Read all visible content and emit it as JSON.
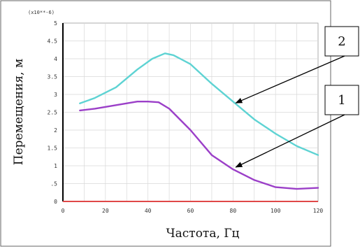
{
  "chart_data": {
    "type": "line",
    "xlabel": "Частота, Гц",
    "ylabel": "Перемещения, м",
    "y_multiplier_label": "(x10**-6)",
    "xlim": [
      0,
      120
    ],
    "ylim": [
      0,
      5
    ],
    "x_ticks": [
      "0",
      "20",
      "40",
      "60",
      "80",
      "100",
      "120"
    ],
    "y_ticks": [
      {
        "value": 0,
        "label": "0"
      },
      {
        "value": 0.5,
        "label": ".5"
      },
      {
        "value": 1,
        "label": "1"
      },
      {
        "value": 1.5,
        "label": "1.5"
      },
      {
        "value": 2,
        "label": "2"
      },
      {
        "value": 2.5,
        "label": "2.5"
      },
      {
        "value": 3,
        "label": "3"
      },
      {
        "value": 3.5,
        "label": "3.5"
      },
      {
        "value": 4,
        "label": "4"
      },
      {
        "value": 4.5,
        "label": "4.5"
      },
      {
        "value": 5,
        "label": "5"
      }
    ],
    "grid": true,
    "series": [
      {
        "name": "2",
        "color": "#5ed3d3",
        "x": [
          8,
          15,
          25,
          35,
          42,
          48,
          52,
          60,
          70,
          80,
          90,
          100,
          110,
          120
        ],
        "values": [
          2.75,
          2.9,
          3.2,
          3.7,
          4.0,
          4.15,
          4.1,
          3.85,
          3.3,
          2.8,
          2.3,
          1.9,
          1.55,
          1.3
        ]
      },
      {
        "name": "1",
        "color": "#9b3fc8",
        "x": [
          8,
          15,
          25,
          35,
          40,
          45,
          50,
          60,
          70,
          80,
          90,
          100,
          110,
          120
        ],
        "values": [
          2.55,
          2.6,
          2.7,
          2.8,
          2.8,
          2.78,
          2.6,
          2.0,
          1.3,
          0.9,
          0.6,
          0.4,
          0.35,
          0.38
        ]
      }
    ],
    "baseline_color": "#e04848",
    "callouts": [
      {
        "label": "2",
        "x": 80,
        "y": 2.8
      },
      {
        "label": "1",
        "x": 80,
        "y": 1.0
      }
    ]
  }
}
